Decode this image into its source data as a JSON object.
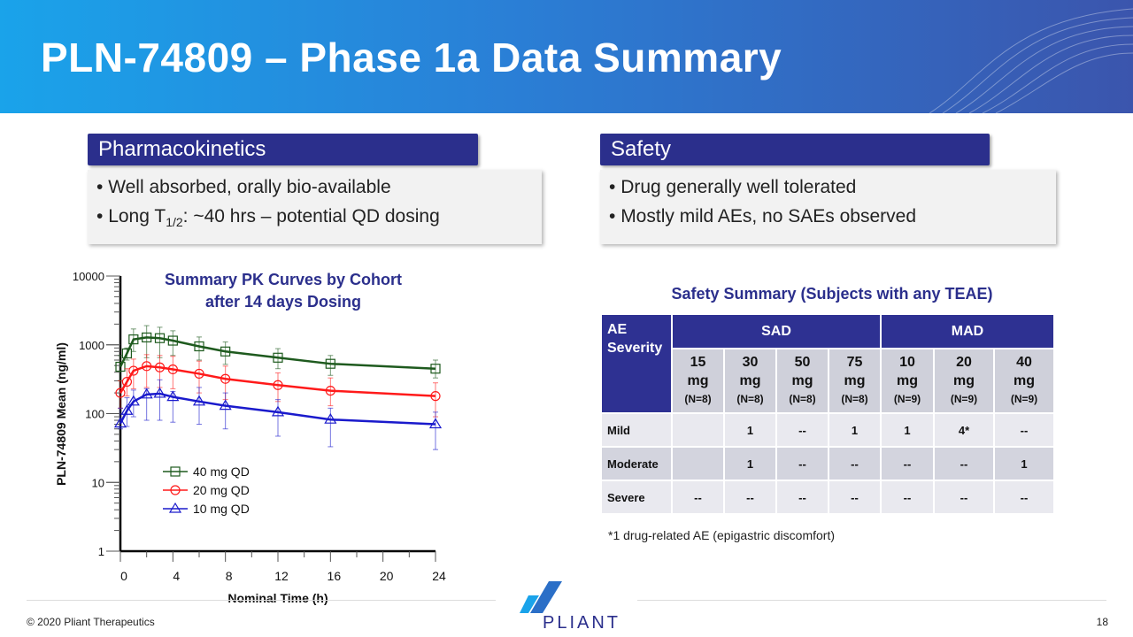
{
  "title": "PLN-74809 – Phase 1a Data Summary",
  "pk": {
    "heading": "Pharmacokinetics",
    "bullets": [
      "Well absorbed, orally bio-available",
      "Long T",
      "1/2",
      ": ~40 hrs – potential QD dosing"
    ]
  },
  "safety": {
    "heading": "Safety",
    "bullets": [
      "Drug generally well tolerated",
      "Mostly mild AEs, no SAEs observed"
    ]
  },
  "chart_data": {
    "type": "line",
    "title": "Summary PK Curves by Cohort after 14 days Dosing",
    "title_lines": [
      "Summary PK Curves by Cohort",
      "after 14 days Dosing"
    ],
    "xlabel": "Nominal Time (h)",
    "ylabel": "PLN-74809 Mean (ng/ml)",
    "xlim": [
      0,
      24
    ],
    "ylim": [
      1,
      10000
    ],
    "yscale": "log",
    "xticks": [
      "0",
      "4",
      "8",
      "12",
      "16",
      "20",
      "24"
    ],
    "yticks": [
      "1",
      "10",
      "100",
      "1000",
      "10000"
    ],
    "legend_position": "lower-left",
    "x": [
      0,
      0.5,
      1,
      2,
      3,
      4,
      6,
      8,
      12,
      16,
      24
    ],
    "series": [
      {
        "name": "40 mg QD",
        "color": "#1e5a1e",
        "marker": "square",
        "values": [
          480,
          750,
          1200,
          1280,
          1250,
          1150,
          950,
          800,
          650,
          530,
          450
        ],
        "upper": [
          700,
          900,
          1700,
          1900,
          1800,
          1600,
          1300,
          1100,
          880,
          700,
          600
        ],
        "lower": [
          300,
          600,
          800,
          650,
          650,
          700,
          600,
          520,
          450,
          360,
          330
        ]
      },
      {
        "name": "20 mg QD",
        "color": "#ff1a1a",
        "marker": "circle",
        "values": [
          200,
          290,
          420,
          490,
          470,
          440,
          380,
          320,
          260,
          215,
          180
        ],
        "upper": [
          300,
          450,
          620,
          720,
          700,
          680,
          580,
          490,
          390,
          330,
          280
        ],
        "lower": [
          120,
          180,
          230,
          240,
          240,
          230,
          200,
          160,
          150,
          130,
          90
        ]
      },
      {
        "name": "10 mg QD",
        "color": "#1a1acc",
        "marker": "triangle",
        "values": [
          72,
          110,
          150,
          190,
          195,
          175,
          150,
          130,
          105,
          82,
          70
        ],
        "upper": [
          120,
          170,
          220,
          230,
          310,
          210,
          240,
          200,
          160,
          120,
          105
        ],
        "lower": [
          60,
          65,
          90,
          80,
          80,
          75,
          70,
          60,
          47,
          33,
          30
        ]
      }
    ]
  },
  "table": {
    "title": "Safety Summary (Subjects with any TEAE)",
    "corner": [
      "AE",
      "Severity"
    ],
    "groups": [
      "SAD",
      "MAD"
    ],
    "doses": [
      [
        "15",
        "mg",
        "(N=8)"
      ],
      [
        "30",
        "mg",
        "(N=8)"
      ],
      [
        "50",
        "mg",
        "(N=8)"
      ],
      [
        "75",
        "mg",
        "(N=8)"
      ],
      [
        "10",
        "mg",
        "(N=9)"
      ],
      [
        "20",
        "mg",
        "(N=9)"
      ],
      [
        "40",
        "mg",
        "(N=9)"
      ]
    ],
    "rows": [
      {
        "label": "Mild",
        "cells": [
          "",
          "1",
          "--",
          "1",
          "1",
          "4*",
          "--"
        ]
      },
      {
        "label": "Moderate",
        "cells": [
          "",
          "1",
          "--",
          "--",
          "--",
          "--",
          "1"
        ]
      },
      {
        "label": "Severe",
        "cells": [
          "--",
          "--",
          "--",
          "--",
          "--",
          "--",
          "--"
        ]
      }
    ],
    "footnote": "*1 drug-related AE (epigastric discomfort)"
  },
  "footer": {
    "copyright": "© 2020 Pliant Therapeutics",
    "page": "18",
    "logo": "PLIANT"
  }
}
